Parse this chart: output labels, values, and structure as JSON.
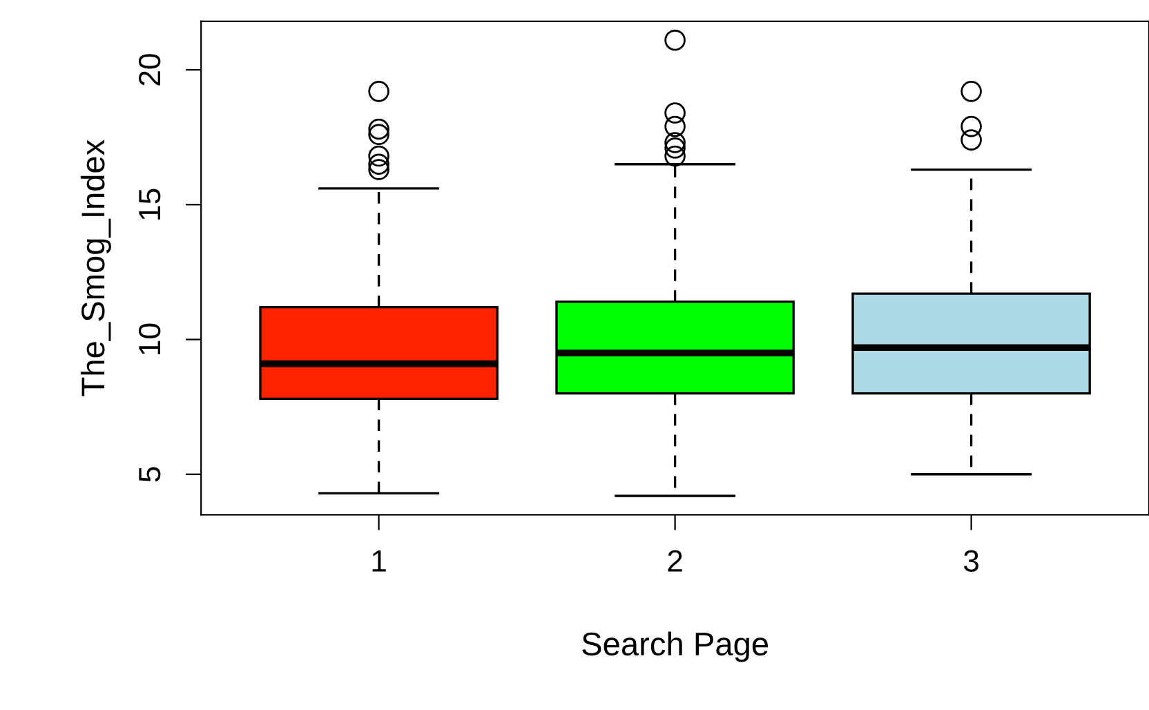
{
  "chart_data": {
    "type": "box",
    "xlabel": "Search Page",
    "ylabel": "The_Smog_Index",
    "categories": [
      "1",
      "2",
      "3"
    ],
    "colors": [
      "#ff2200",
      "#00ff00",
      "#add8e6"
    ],
    "boxes": [
      {
        "low": 4.3,
        "q1": 7.8,
        "median": 9.1,
        "q3": 11.2,
        "high": 15.6,
        "outliers": [
          19.2,
          17.8,
          17.6,
          16.8,
          16.5,
          16.3
        ]
      },
      {
        "low": 4.2,
        "q1": 8.0,
        "median": 9.5,
        "q3": 11.4,
        "high": 16.5,
        "outliers": [
          21.1,
          18.4,
          17.9,
          17.3,
          17.1,
          16.8
        ]
      },
      {
        "low": 5.0,
        "q1": 8.0,
        "median": 9.7,
        "q3": 11.7,
        "high": 16.3,
        "outliers": [
          19.2,
          17.9,
          17.4
        ]
      }
    ],
    "ylim": [
      3.5,
      21.8
    ],
    "yticks": [
      5,
      10,
      15,
      20
    ],
    "grid": false
  }
}
